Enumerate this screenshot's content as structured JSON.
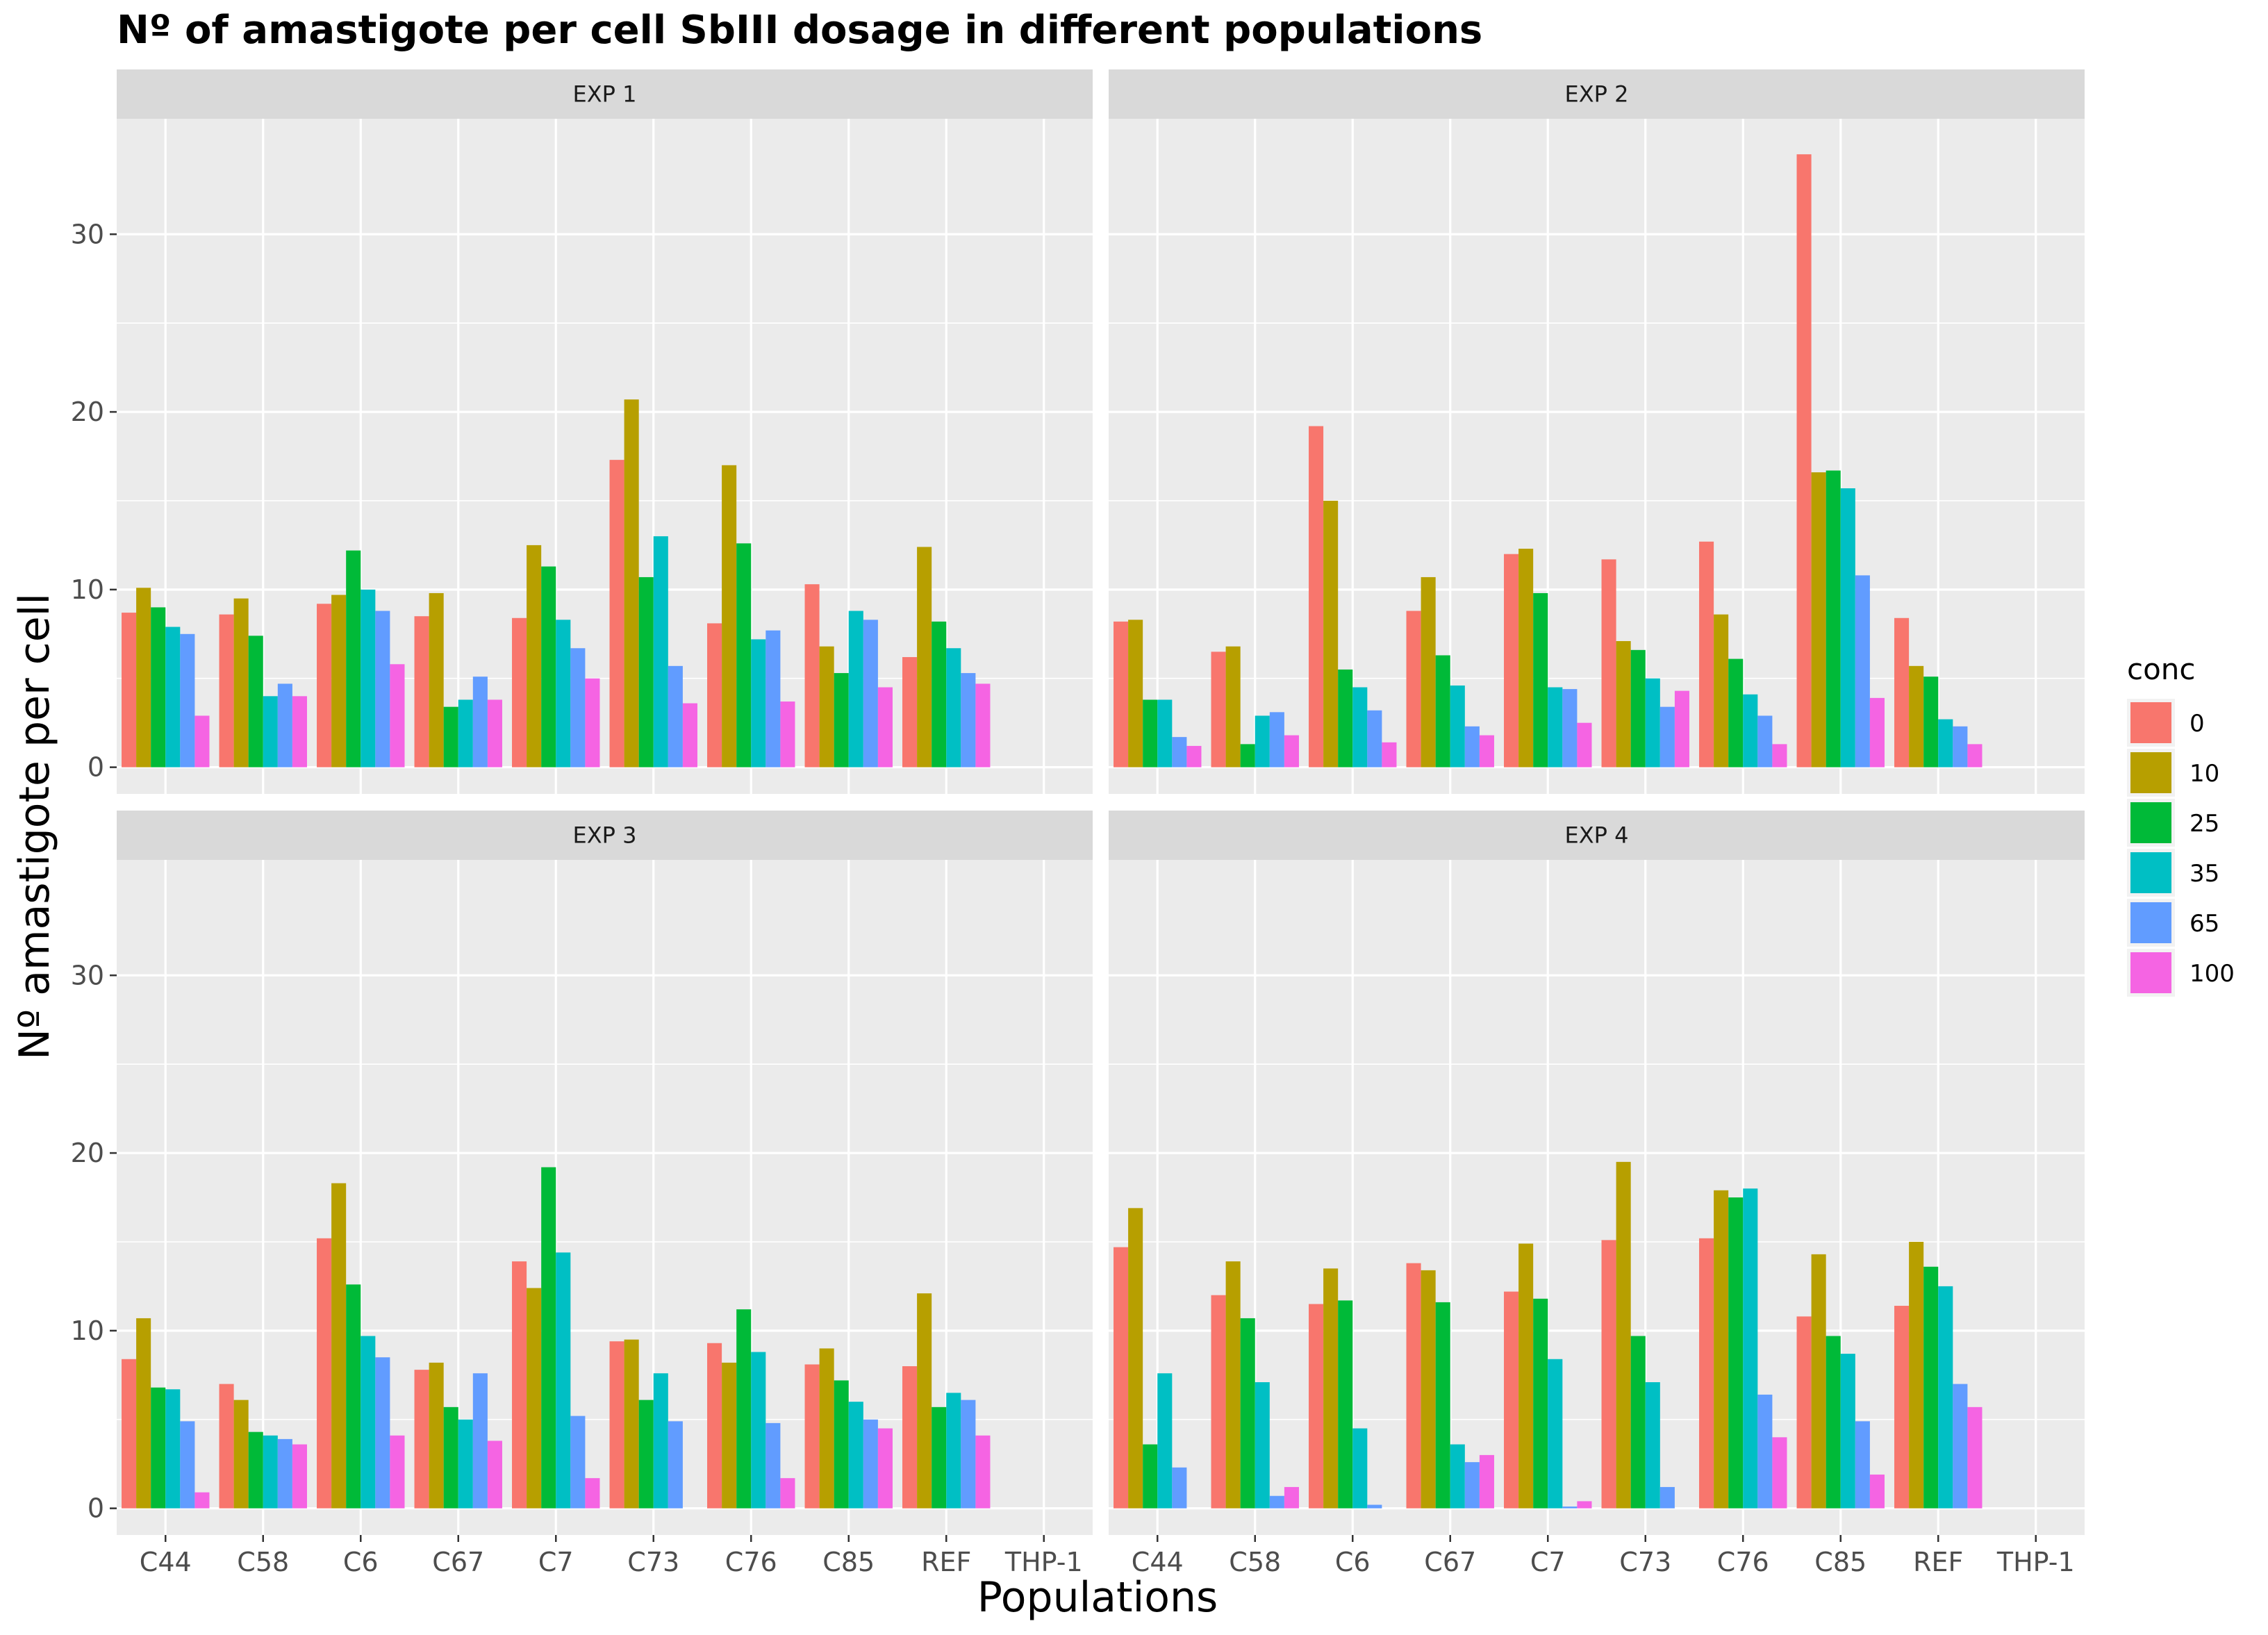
{
  "chart_data": {
    "type": "bar",
    "title": "Nº of amastigote per cell SbIII dosage in different populations",
    "xlabel": "Populations",
    "ylabel": "Nº  amastigote per cell",
    "ylim": [
      -1.5,
      36.5
    ],
    "y_ticks": [
      0,
      10,
      20,
      30
    ],
    "grid": true,
    "legend_position": "right",
    "categories": [
      "C44",
      "C58",
      "C6",
      "C67",
      "C7",
      "C73",
      "C76",
      "C85",
      "REF",
      "THP-1"
    ],
    "legend": {
      "title": "conc",
      "entries": [
        {
          "label": "0",
          "color": "#F8766D"
        },
        {
          "label": "10",
          "color": "#B79F00"
        },
        {
          "label": "25",
          "color": "#00BA38"
        },
        {
          "label": "35",
          "color": "#00BFC4"
        },
        {
          "label": "65",
          "color": "#619CFF"
        },
        {
          "label": "100",
          "color": "#F564E3"
        }
      ]
    },
    "panels": [
      {
        "strip": "EXP 1",
        "series": [
          {
            "name": "0",
            "values": [
              8.7,
              8.6,
              9.2,
              8.5,
              8.4,
              17.3,
              8.1,
              10.3,
              6.2,
              null
            ]
          },
          {
            "name": "10",
            "values": [
              10.1,
              9.5,
              9.7,
              9.8,
              12.5,
              20.7,
              17.0,
              6.8,
              12.4,
              null
            ]
          },
          {
            "name": "25",
            "values": [
              9.0,
              7.4,
              12.2,
              3.4,
              11.3,
              10.7,
              12.6,
              5.3,
              8.2,
              null
            ]
          },
          {
            "name": "35",
            "values": [
              7.9,
              4.0,
              10.0,
              3.8,
              8.3,
              13.0,
              7.2,
              8.8,
              6.7,
              null
            ]
          },
          {
            "name": "65",
            "values": [
              7.5,
              4.7,
              8.8,
              5.1,
              6.7,
              5.7,
              7.7,
              8.3,
              5.3,
              null
            ]
          },
          {
            "name": "100",
            "values": [
              2.9,
              4.0,
              5.8,
              3.8,
              5.0,
              3.6,
              3.7,
              4.5,
              4.7,
              null
            ]
          }
        ]
      },
      {
        "strip": "EXP 2",
        "series": [
          {
            "name": "0",
            "values": [
              8.2,
              6.5,
              19.2,
              8.8,
              12.0,
              11.7,
              12.7,
              34.5,
              8.4,
              null
            ]
          },
          {
            "name": "10",
            "values": [
              8.3,
              6.8,
              15.0,
              10.7,
              12.3,
              7.1,
              8.6,
              16.6,
              5.7,
              null
            ]
          },
          {
            "name": "25",
            "values": [
              3.8,
              1.3,
              5.5,
              6.3,
              9.8,
              6.6,
              6.1,
              16.7,
              5.1,
              null
            ]
          },
          {
            "name": "35",
            "values": [
              3.8,
              2.9,
              4.5,
              4.6,
              4.5,
              5.0,
              4.1,
              15.7,
              2.7,
              null
            ]
          },
          {
            "name": "65",
            "values": [
              1.7,
              3.1,
              3.2,
              2.3,
              4.4,
              3.4,
              2.9,
              10.8,
              2.3,
              null
            ]
          },
          {
            "name": "100",
            "values": [
              1.2,
              1.8,
              1.4,
              1.8,
              2.5,
              4.3,
              1.3,
              3.9,
              1.3,
              null
            ]
          }
        ]
      },
      {
        "strip": "EXP 3",
        "series": [
          {
            "name": "0",
            "values": [
              8.4,
              7.0,
              15.2,
              7.8,
              13.9,
              9.4,
              9.3,
              8.1,
              8.0,
              null
            ]
          },
          {
            "name": "10",
            "values": [
              10.7,
              6.1,
              18.3,
              8.2,
              12.4,
              9.5,
              8.2,
              9.0,
              12.1,
              null
            ]
          },
          {
            "name": "25",
            "values": [
              6.8,
              4.3,
              12.6,
              5.7,
              19.2,
              6.1,
              11.2,
              7.2,
              5.7,
              null
            ]
          },
          {
            "name": "35",
            "values": [
              6.7,
              4.1,
              9.7,
              5.0,
              14.4,
              7.6,
              8.8,
              6.0,
              6.5,
              null
            ]
          },
          {
            "name": "65",
            "values": [
              4.9,
              3.9,
              8.5,
              7.6,
              5.2,
              4.9,
              4.8,
              5.0,
              6.1,
              null
            ]
          },
          {
            "name": "100",
            "values": [
              0.9,
              3.6,
              4.1,
              3.8,
              1.7,
              null,
              1.7,
              4.5,
              4.1,
              null
            ]
          }
        ]
      },
      {
        "strip": "EXP 4",
        "series": [
          {
            "name": "0",
            "values": [
              14.7,
              12.0,
              11.5,
              13.8,
              12.2,
              15.1,
              15.2,
              10.8,
              11.4,
              null
            ]
          },
          {
            "name": "10",
            "values": [
              16.9,
              13.9,
              13.5,
              13.4,
              14.9,
              19.5,
              17.9,
              14.3,
              15.0,
              null
            ]
          },
          {
            "name": "25",
            "values": [
              3.6,
              10.7,
              11.7,
              11.6,
              11.8,
              9.7,
              17.5,
              9.7,
              13.6,
              null
            ]
          },
          {
            "name": "35",
            "values": [
              7.6,
              7.1,
              4.5,
              3.6,
              8.4,
              7.1,
              18.0,
              8.7,
              12.5,
              null
            ]
          },
          {
            "name": "65",
            "values": [
              2.3,
              0.7,
              0.2,
              2.6,
              0.1,
              1.2,
              6.4,
              4.9,
              7.0,
              null
            ]
          },
          {
            "name": "100",
            "values": [
              null,
              1.2,
              null,
              3.0,
              0.4,
              null,
              4.0,
              1.9,
              5.7,
              null
            ]
          }
        ]
      }
    ]
  }
}
